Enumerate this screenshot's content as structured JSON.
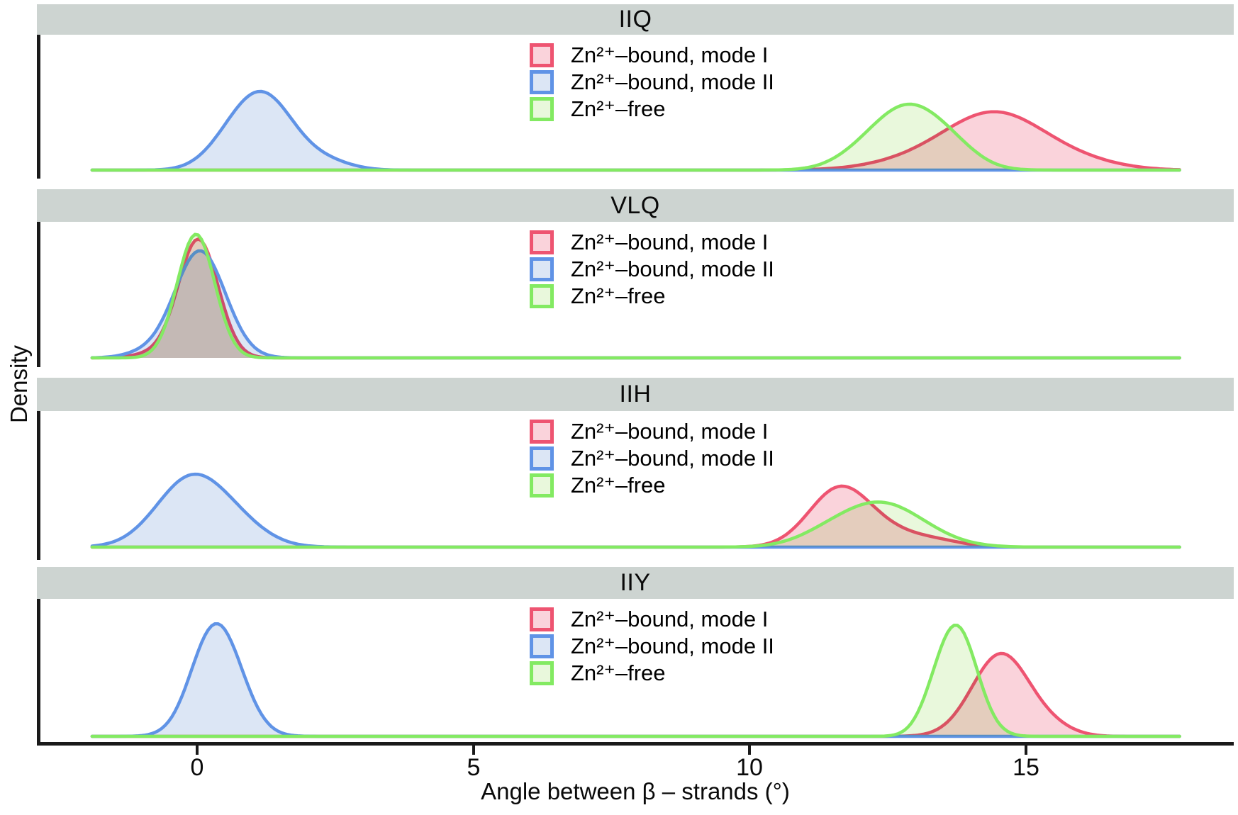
{
  "figure": {
    "y_axis_label": "Density",
    "x_axis_label": "Angle between β – strands (°)",
    "x_ticks": [
      "0",
      "5",
      "10",
      "15"
    ]
  },
  "legend": {
    "items": [
      {
        "label": "Zn²⁺–bound, mode I",
        "stroke": "#ee5471",
        "fill": "#fad3db"
      },
      {
        "label": "Zn²⁺–bound, mode II",
        "stroke": "#6093e6",
        "fill": "#dce6f5"
      },
      {
        "label": "Zn²⁺–free",
        "stroke": "#83ea62",
        "fill": "#e9f8dc"
      }
    ]
  },
  "chart_data": {
    "type": "area",
    "subtype": "kernel-density, 4 facets sharing one x axis",
    "x_range": [
      -1.9,
      17.8
    ],
    "x_ticks": [
      0,
      5,
      10,
      15
    ],
    "xlabel": "Angle between β – strands (°)",
    "ylabel": "Density",
    "legend_position": "top-center inside each facet",
    "grid": false,
    "facets": [
      {
        "title": "IIQ",
        "peaks_summary": {
          "mode_I_peak_x": 14.4,
          "mode_II_peak_x": 1.2,
          "free_peak_x": 12.9
        },
        "series": [
          {
            "name": "Zn2+-bound, mode I",
            "legend_index": 0,
            "components": [
              {
                "center": 14.45,
                "sd": 0.9,
                "height": 0.44
              },
              {
                "center": 13.0,
                "sd": 0.85,
                "height": 0.06
              },
              {
                "center": 16.0,
                "sd": 0.75,
                "height": 0.05
              }
            ]
          },
          {
            "name": "Zn2+-bound, mode II",
            "legend_index": 1,
            "components": [
              {
                "center": 1.2,
                "sd": 0.55,
                "height": 0.58
              },
              {
                "center": 0.55,
                "sd": 0.45,
                "height": 0.1
              },
              {
                "center": 2.35,
                "sd": 0.45,
                "height": 0.06
              }
            ]
          },
          {
            "name": "Zn2+-free",
            "legend_index": 2,
            "components": [
              {
                "center": 12.88,
                "sd": 0.66,
                "height": 0.5
              },
              {
                "center": 13.75,
                "sd": 0.45,
                "height": 0.07
              },
              {
                "center": 11.95,
                "sd": 0.5,
                "height": 0.05
              }
            ]
          }
        ]
      },
      {
        "title": "VLQ",
        "peaks_summary": {
          "mode_I_peak_x": 0.0,
          "mode_II_peak_x": 0.05,
          "free_peak_x": 0.0
        },
        "series": [
          {
            "name": "Zn2+-bound, mode I",
            "legend_index": 0,
            "components": [
              {
                "center": 0.02,
                "sd": 0.36,
                "height": 0.93
              },
              {
                "center": -0.8,
                "sd": 0.35,
                "height": 0.03
              }
            ]
          },
          {
            "name": "Zn2+-bound, mode II",
            "legend_index": 1,
            "components": [
              {
                "center": 0.05,
                "sd": 0.46,
                "height": 0.84
              },
              {
                "center": -1.0,
                "sd": 0.35,
                "height": 0.03
              }
            ]
          },
          {
            "name": "Zn2+-free",
            "legend_index": 2,
            "components": [
              {
                "center": -0.02,
                "sd": 0.34,
                "height": 0.97
              }
            ]
          }
        ]
      },
      {
        "title": "IIH",
        "peaks_summary": {
          "mode_I_peak_x": 11.6,
          "mode_II_peak_x": 0.0,
          "free_peak_x": 12.4
        },
        "series": [
          {
            "name": "Zn2+-bound, mode I",
            "legend_index": 0,
            "components": [
              {
                "center": 11.62,
                "sd": 0.55,
                "height": 0.45
              },
              {
                "center": 12.6,
                "sd": 0.6,
                "height": 0.1
              },
              {
                "center": 13.5,
                "sd": 0.45,
                "height": 0.03
              }
            ]
          },
          {
            "name": "Zn2+-bound, mode II",
            "legend_index": 1,
            "components": [
              {
                "center": -0.12,
                "sd": 0.62,
                "height": 0.53
              },
              {
                "center": 0.75,
                "sd": 0.55,
                "height": 0.13
              }
            ]
          },
          {
            "name": "Zn2+-free",
            "legend_index": 2,
            "components": [
              {
                "center": 12.35,
                "sd": 0.8,
                "height": 0.35
              },
              {
                "center": 11.3,
                "sd": 0.5,
                "height": 0.03
              }
            ]
          }
        ]
      },
      {
        "title": "IIY",
        "peaks_summary": {
          "mode_I_peak_x": 14.6,
          "mode_II_peak_x": 0.4,
          "free_peak_x": 13.75
        },
        "series": [
          {
            "name": "Zn2+-bound, mode I",
            "legend_index": 0,
            "components": [
              {
                "center": 14.55,
                "sd": 0.52,
                "height": 0.64
              },
              {
                "center": 15.5,
                "sd": 0.4,
                "height": 0.05
              }
            ]
          },
          {
            "name": "Zn2+-bound, mode II",
            "legend_index": 1,
            "components": [
              {
                "center": 0.38,
                "sd": 0.44,
                "height": 0.84
              },
              {
                "center": 0.05,
                "sd": 0.3,
                "height": 0.06
              }
            ]
          },
          {
            "name": "Zn2+-free",
            "legend_index": 2,
            "components": [
              {
                "center": 13.75,
                "sd": 0.37,
                "height": 0.84
              },
              {
                "center": 13.3,
                "sd": 0.28,
                "height": 0.08
              }
            ]
          }
        ]
      }
    ]
  }
}
